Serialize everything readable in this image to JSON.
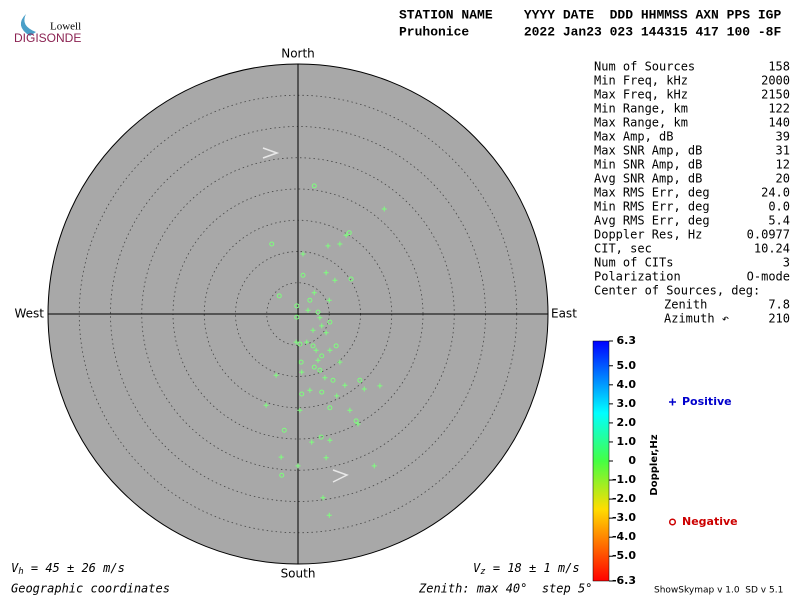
{
  "header": {
    "logo": {
      "top": "Lowell",
      "bottom": "DIGISONDE"
    },
    "line1": "STATION NAME    YYYY DATE  DDD HHMMSS AXN PPS IGP",
    "line2": "Pruhonice       2022 Jan23 023 144315 417 100 -8F"
  },
  "stats": [
    {
      "label": "Num of Sources",
      "value": "158"
    },
    {
      "label": "Min Freq, kHz",
      "value": "2000"
    },
    {
      "label": "Max Freq, kHz",
      "value": "2150"
    },
    {
      "label": "Min Range, km",
      "value": "122"
    },
    {
      "label": "Max Range, km",
      "value": "140"
    },
    {
      "label": "Max Amp, dB",
      "value": "39"
    },
    {
      "label": "Max SNR Amp, dB",
      "value": "31"
    },
    {
      "label": "Min SNR Amp, dB",
      "value": "12"
    },
    {
      "label": "Avg SNR Amp, dB",
      "value": "20"
    },
    {
      "label": "Max RMS Err, deg",
      "value": "24.0"
    },
    {
      "label": "Min RMS Err, deg",
      "value": "0.0"
    },
    {
      "label": "Avg RMS Err, deg",
      "value": "5.4"
    },
    {
      "label": "Doppler Res, Hz",
      "value": "0.0977"
    },
    {
      "label": "CIT, sec",
      "value": "10.24"
    },
    {
      "label": "Num of CITs",
      "value": "3"
    },
    {
      "label": "Polarization",
      "value": "O-mode"
    }
  ],
  "center": {
    "title": "Center of Sources, deg:",
    "zenith": {
      "label": "Zenith",
      "value": "7.8"
    },
    "azimuth": {
      "label": "Azimuth ↶",
      "value": "210"
    }
  },
  "footer": {
    "vh": [
      "V",
      "h",
      " = 45 ± 26 m/s"
    ],
    "vz": [
      "V",
      "z",
      " = 18 ± 1 m/s"
    ],
    "coords": "Geographic coordinates",
    "zenith": "Zenith: max 40°  step 5°",
    "version": "ShowSkymap v 1.0  SD v 5.1"
  },
  "chart_data": {
    "type": "scatter",
    "compass": {
      "north": "North",
      "south": "South",
      "west": "West",
      "east": "East"
    },
    "rlim": [
      0,
      40
    ],
    "rticks": [
      5,
      10,
      15,
      20,
      25,
      30,
      35,
      40
    ],
    "background": "#a8a8a8",
    "series": [
      {
        "name": "Positive",
        "marker": "plus",
        "color": "#7dff7d",
        "legend_color": "#0000cc",
        "x": [
          13.8,
          4.8,
          7.7,
          6.7,
          0.8,
          4.5,
          5.9,
          2.6,
          5.0,
          1.6,
          3.5,
          2.4,
          4.5,
          1.4,
          5.1,
          3.2,
          6.7,
          -3.5,
          0.6,
          4.3,
          7.5,
          13.1,
          10.6,
          1.9,
          6.2,
          -5.1,
          0.3,
          8.3,
          9.6,
          5.1,
          2.2,
          -2.7,
          4.5,
          12.2,
          0,
          4.0,
          5.0,
          -0.3,
          3.8,
          2.9
        ],
        "y": [
          16.8,
          10.9,
          12.6,
          11.2,
          9.6,
          6.6,
          5.4,
          3.4,
          2.2,
          0.6,
          -0.6,
          -2.6,
          -3.0,
          -4.5,
          -5.8,
          -7.4,
          -7.7,
          -9.8,
          -9.3,
          -10.2,
          -11.4,
          -11.5,
          -12.0,
          -12.2,
          -13.1,
          -14.6,
          -15.4,
          -15.4,
          -17.6,
          -20.2,
          -20.5,
          -22.9,
          -23.0,
          -24.3,
          -24.3,
          -29.4,
          -32.2,
          -4.5,
          -1.9,
          -5.8
        ]
      },
      {
        "name": "Negative",
        "marker": "circle",
        "color": "#7dff7d",
        "legend_color": "#cc0000",
        "x": [
          2.6,
          -4.2,
          8.2,
          0.8,
          8.5,
          -3.0,
          -0.2,
          3.2,
          5.1,
          0.3,
          2.4,
          3.8,
          6.1,
          0.5,
          3.5,
          5.6,
          0.6,
          3.8,
          5.1,
          9.9,
          -2.2,
          3.7,
          9.3,
          -2.6,
          -0.2,
          1.9,
          2.6
        ],
        "y": [
          20.5,
          11.2,
          13.0,
          6.2,
          5.6,
          2.9,
          1.3,
          0.3,
          -1.3,
          -4.8,
          -5.1,
          -6.7,
          -5.1,
          -7.7,
          -9.0,
          -10.6,
          -12.8,
          -12.5,
          -15.0,
          -10.6,
          -18.6,
          -19.7,
          -17.1,
          -25.8,
          -0.5,
          2.2,
          -8.5
        ]
      }
    ],
    "colorbar": {
      "label": "Doppler,Hz",
      "lim": [
        -6.3,
        6.3
      ],
      "ticks": [
        6.3,
        {
          "value": 5,
          "label": "5.0"
        },
        {
          "value": 4,
          "label": "4.0"
        },
        {
          "value": 3,
          "label": "3.0"
        },
        {
          "value": 2,
          "label": "2.0"
        },
        {
          "value": 1,
          "label": "1.0"
        },
        0,
        {
          "value": -1,
          "label": "-1.0"
        },
        {
          "value": -2,
          "label": "-2.0"
        },
        {
          "value": -3,
          "label": "-3.0"
        },
        {
          "value": -4,
          "label": "-4.0"
        },
        {
          "value": -5,
          "label": "-5.0"
        },
        -6.3
      ]
    }
  }
}
